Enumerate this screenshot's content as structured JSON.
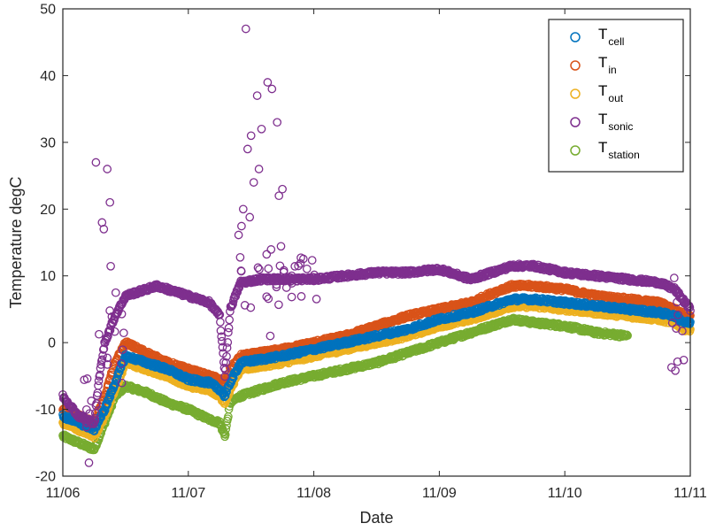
{
  "chart_data": {
    "type": "scatter",
    "xlabel": "Date",
    "ylabel": "Temperature degC",
    "xlim": [
      "11/06",
      "11/11"
    ],
    "ylim": [
      -20,
      50
    ],
    "x_ticks": [
      "11/06",
      "11/07",
      "11/08",
      "11/09",
      "11/10",
      "11/11"
    ],
    "y_ticks": [
      -20,
      -10,
      0,
      10,
      20,
      30,
      40,
      50
    ],
    "grid": false,
    "legend_position": "top-right",
    "colors": {
      "cell": "#0072bd",
      "in": "#d95319",
      "out": "#edb120",
      "sonic": "#7e2f8e",
      "station": "#77ac30"
    },
    "series": [
      {
        "name": "Tcell",
        "name_main": "T",
        "name_sub": "cell",
        "color": "#0072bd",
        "x": [
          "11/06 00:00",
          "11/06 03:00",
          "11/06 06:00",
          "11/06 08:00",
          "11/06 10:00",
          "11/06 12:00",
          "11/06 16:00",
          "11/06 20:00",
          "11/07 00:00",
          "11/07 04:00",
          "11/07 06:00",
          "11/07 07:00",
          "11/07 08:00",
          "11/07 10:00",
          "11/07 14:00",
          "11/07 18:00",
          "11/08 00:00",
          "11/08 06:00",
          "11/08 12:00",
          "11/08 18:00",
          "11/09 00:00",
          "11/09 06:00",
          "11/09 12:00",
          "11/09 14:00",
          "11/09 18:00",
          "11/10 00:00",
          "11/10 06:00",
          "11/10 12:00",
          "11/10 18:00",
          "11/10 21:00",
          "11/10 23:00",
          "11/11 00:00"
        ],
        "y": [
          -11,
          -12,
          -13,
          -10,
          -6,
          -2,
          -3,
          -4,
          -5.5,
          -6,
          -7,
          -8,
          -6,
          -3,
          -2.5,
          -2,
          -1,
          0,
          1,
          2,
          3.5,
          4.5,
          6,
          6.5,
          6.5,
          6,
          5.5,
          5,
          4.5,
          4,
          3,
          3
        ]
      },
      {
        "name": "Tin",
        "name_main": "T",
        "name_sub": "in",
        "color": "#d95319",
        "x": [
          "11/06 00:00",
          "11/06 03:00",
          "11/06 06:00",
          "11/06 08:00",
          "11/06 10:00",
          "11/06 12:00",
          "11/06 16:00",
          "11/06 20:00",
          "11/07 00:00",
          "11/07 04:00",
          "11/07 06:00",
          "11/07 07:00",
          "11/07 08:00",
          "11/07 10:00",
          "11/07 14:00",
          "11/07 18:00",
          "11/08 00:00",
          "11/08 06:00",
          "11/08 12:00",
          "11/08 18:00",
          "11/09 00:00",
          "11/09 06:00",
          "11/09 12:00",
          "11/09 14:00",
          "11/09 18:00",
          "11/10 00:00",
          "11/10 06:00",
          "11/10 12:00",
          "11/10 18:00",
          "11/10 21:00",
          "11/10 23:00",
          "11/11 00:00"
        ],
        "y": [
          -10,
          -11,
          -12,
          -8,
          -3,
          0,
          -1.5,
          -3,
          -4,
          -5,
          -5.5,
          -6,
          -4,
          -2,
          -1.5,
          -1,
          0,
          1,
          2.5,
          4,
          5,
          6,
          8,
          8.5,
          8.5,
          8,
          7,
          6.5,
          6,
          5,
          4,
          4
        ]
      },
      {
        "name": "Tout",
        "name_main": "T",
        "name_sub": "out",
        "color": "#edb120",
        "x": [
          "11/06 00:00",
          "11/06 03:00",
          "11/06 06:00",
          "11/06 08:00",
          "11/06 10:00",
          "11/06 12:00",
          "11/06 16:00",
          "11/06 20:00",
          "11/07 00:00",
          "11/07 04:00",
          "11/07 06:00",
          "11/07 07:00",
          "11/07 08:00",
          "11/07 10:00",
          "11/07 14:00",
          "11/07 18:00",
          "11/08 00:00",
          "11/08 06:00",
          "11/08 12:00",
          "11/08 18:00",
          "11/09 00:00",
          "11/09 06:00",
          "11/09 12:00",
          "11/09 14:00",
          "11/09 18:00",
          "11/10 00:00",
          "11/10 06:00",
          "11/10 12:00",
          "11/10 18:00",
          "11/10 21:00",
          "11/10 23:00",
          "11/11 00:00"
        ],
        "y": [
          -12,
          -13,
          -14,
          -11,
          -7,
          -3,
          -4,
          -5,
          -6.5,
          -7,
          -8,
          -9,
          -7,
          -4,
          -3.5,
          -3,
          -2,
          -1,
          0,
          1,
          2.5,
          3.5,
          5,
          5.5,
          5.5,
          5,
          4.5,
          4,
          3.5,
          3,
          2,
          2
        ]
      },
      {
        "name": "Tsonic",
        "name_main": "T",
        "name_sub": "sonic",
        "color": "#7e2f8e",
        "x": [
          "11/06 00:00",
          "11/06 03:00",
          "11/06 06:00",
          "11/06 07:00",
          "11/06 08:00",
          "11/06 10:00",
          "11/06 12:00",
          "11/06 16:00",
          "11/06 18:00",
          "11/07 00:00",
          "11/07 04:00",
          "11/07 06:00",
          "11/07 07:00",
          "11/07 08:00",
          "11/07 10:00",
          "11/07 14:00",
          "11/07 18:00",
          "11/08 00:00",
          "11/08 06:00",
          "11/08 12:00",
          "11/08 18:00",
          "11/09 00:00",
          "11/09 06:00",
          "11/09 12:00",
          "11/09 14:00",
          "11/09 18:00",
          "11/10 00:00",
          "11/10 06:00",
          "11/10 12:00",
          "11/10 18:00",
          "11/10 21:00",
          "11/10 23:00",
          "11/11 00:00"
        ],
        "y": [
          -8,
          -11,
          -12,
          -5,
          0,
          4,
          7,
          8,
          8.5,
          7,
          6,
          4,
          -5,
          5,
          9,
          9.5,
          9.5,
          9.5,
          10,
          10.5,
          10.5,
          11,
          9.5,
          11,
          11.5,
          11.5,
          10.5,
          10,
          9.5,
          9,
          8,
          6,
          5
        ]
      },
      {
        "name": "Tstation",
        "name_main": "T",
        "name_sub": "station",
        "color": "#77ac30",
        "x": [
          "11/06 00:00",
          "11/06 03:00",
          "11/06 06:00",
          "11/06 08:00",
          "11/06 10:00",
          "11/06 12:00",
          "11/06 16:00",
          "11/06 20:00",
          "11/07 00:00",
          "11/07 04:00",
          "11/07 06:00",
          "11/07 07:00",
          "11/07 08:00",
          "11/07 10:00",
          "11/07 14:00",
          "11/07 18:00",
          "11/08 00:00",
          "11/08 06:00",
          "11/08 12:00",
          "11/08 18:00",
          "11/09 00:00",
          "11/09 06:00",
          "11/09 12:00",
          "11/09 14:00",
          "11/09 18:00",
          "11/10 00:00",
          "11/10 06:00",
          "11/10 12:00"
        ],
        "y": [
          -14,
          -15,
          -16,
          -12,
          -8,
          -6.5,
          -7.5,
          -9,
          -10,
          -11.5,
          -12,
          -14,
          -9,
          -8,
          -7,
          -6,
          -5,
          -4,
          -3,
          -1.5,
          0,
          1.5,
          3,
          3.5,
          3,
          2.5,
          1.5,
          1
        ]
      }
    ],
    "sonic_spikes": {
      "x": [
        "11/06 06:20",
        "11/06 07:30",
        "11/06 07:50",
        "11/06 08:30",
        "11/06 09:00",
        "11/06 05:00",
        "11/07 11:00",
        "11/07 11:20",
        "11/07 12:00",
        "11/07 12:30",
        "11/07 13:10",
        "11/07 14:00",
        "11/07 15:10",
        "11/07 16:00",
        "11/07 17:00",
        "11/07 17:20",
        "11/07 18:00",
        "11/07 13:30",
        "11/07 10:30",
        "11/07 15:40"
      ],
      "y": [
        27,
        18,
        17,
        26,
        21,
        -18,
        47,
        29,
        31,
        24,
        37,
        32,
        39,
        38,
        33,
        22,
        23,
        26,
        20,
        1
      ]
    },
    "sonic_noise": {
      "x": [
        "11/06 04:00",
        "11/06 07:00",
        "11/06 08:00",
        "11/07 10:00",
        "11/07 14:00",
        "11/07 18:00",
        "11/07 21:00",
        "11/10 21:00",
        "11/10 22:30",
        "11/10 23:30"
      ],
      "y_min": [
        -16,
        -12,
        -10,
        5,
        4,
        5,
        7,
        -5,
        -5,
        -1
      ],
      "y_max": [
        -5,
        2,
        11,
        22,
        16,
        16,
        13,
        11,
        9,
        10
      ]
    }
  }
}
